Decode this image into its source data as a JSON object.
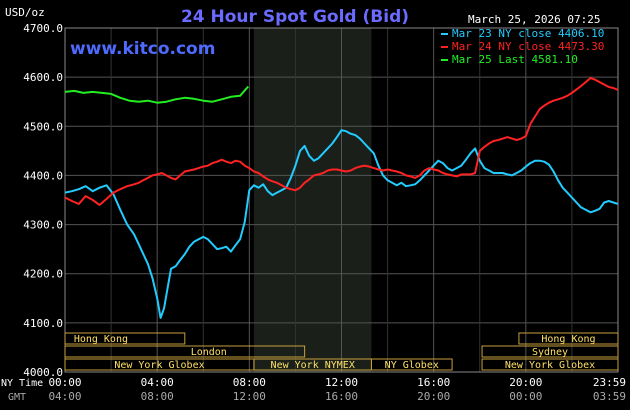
{
  "chart_data": {
    "type": "line",
    "title": "24 Hour Spot Gold (Bid)",
    "date_label": "March 25, 2026 07:25",
    "ylabel": "USD/oz",
    "watermark": "www.kitco.com",
    "ylim": [
      4000,
      4700
    ],
    "xlim": [
      0,
      24
    ],
    "grid": true,
    "yticks": [
      {
        "value": 4700,
        "label": "4700.0"
      },
      {
        "value": 4600,
        "label": "4600.0"
      },
      {
        "value": 4500,
        "label": "4500.0"
      },
      {
        "value": 4400,
        "label": "4400.0"
      },
      {
        "value": 4300,
        "label": "4300.0"
      },
      {
        "value": 4200,
        "label": "4200.0"
      },
      {
        "value": 4100,
        "label": "4100.0"
      },
      {
        "value": 4000,
        "label": "4000.0"
      }
    ],
    "xticks": [
      {
        "value": 0,
        "ny": "00:00",
        "gmt": "04:00"
      },
      {
        "value": 4,
        "ny": "04:00",
        "gmt": "08:00"
      },
      {
        "value": 8,
        "ny": "08:00",
        "gmt": "12:00"
      },
      {
        "value": 12,
        "ny": "12:00",
        "gmt": "16:00"
      },
      {
        "value": 16,
        "ny": "16:00",
        "gmt": "20:00"
      },
      {
        "value": 20,
        "ny": "20:00",
        "gmt": "00:00"
      },
      {
        "value": 24,
        "ny": "23:59",
        "gmt": "03:59"
      }
    ],
    "x_row_labels": {
      "ny": "NY Time",
      "gmt": "GMT"
    },
    "highlight_range": [
      8.2,
      13.3
    ],
    "legend_placement": "top-right",
    "series": [
      {
        "name": "Mar 23 NY close 4406.10",
        "color": "#22ccff",
        "points": [
          [
            0,
            4365
          ],
          [
            0.3,
            4368
          ],
          [
            0.6,
            4372
          ],
          [
            0.9,
            4378
          ],
          [
            1.2,
            4368
          ],
          [
            1.5,
            4375
          ],
          [
            1.8,
            4380
          ],
          [
            2.1,
            4362
          ],
          [
            2.4,
            4330
          ],
          [
            2.7,
            4300
          ],
          [
            3.0,
            4280
          ],
          [
            3.2,
            4260
          ],
          [
            3.4,
            4240
          ],
          [
            3.6,
            4220
          ],
          [
            3.8,
            4190
          ],
          [
            4.0,
            4150
          ],
          [
            4.15,
            4110
          ],
          [
            4.3,
            4130
          ],
          [
            4.45,
            4170
          ],
          [
            4.6,
            4210
          ],
          [
            4.8,
            4215
          ],
          [
            5.0,
            4228
          ],
          [
            5.2,
            4240
          ],
          [
            5.4,
            4255
          ],
          [
            5.6,
            4265
          ],
          [
            5.8,
            4270
          ],
          [
            6.0,
            4275
          ],
          [
            6.2,
            4270
          ],
          [
            6.4,
            4260
          ],
          [
            6.6,
            4250
          ],
          [
            6.8,
            4252
          ],
          [
            7.0,
            4255
          ],
          [
            7.2,
            4245
          ],
          [
            7.4,
            4258
          ],
          [
            7.6,
            4270
          ],
          [
            7.8,
            4305
          ],
          [
            8.0,
            4370
          ],
          [
            8.2,
            4380
          ],
          [
            8.4,
            4375
          ],
          [
            8.6,
            4382
          ],
          [
            8.8,
            4368
          ],
          [
            9.0,
            4360
          ],
          [
            9.2,
            4365
          ],
          [
            9.4,
            4370
          ],
          [
            9.6,
            4375
          ],
          [
            9.8,
            4395
          ],
          [
            10.0,
            4420
          ],
          [
            10.2,
            4450
          ],
          [
            10.4,
            4460
          ],
          [
            10.6,
            4440
          ],
          [
            10.8,
            4430
          ],
          [
            11.0,
            4435
          ],
          [
            11.2,
            4445
          ],
          [
            11.4,
            4455
          ],
          [
            11.6,
            4465
          ],
          [
            11.8,
            4478
          ],
          [
            12.0,
            4492
          ],
          [
            12.2,
            4490
          ],
          [
            12.4,
            4485
          ],
          [
            12.6,
            4482
          ],
          [
            12.8,
            4475
          ],
          [
            13.0,
            4465
          ],
          [
            13.2,
            4455
          ],
          [
            13.4,
            4445
          ],
          [
            13.6,
            4420
          ],
          [
            13.8,
            4400
          ],
          [
            14.0,
            4390
          ],
          [
            14.2,
            4385
          ],
          [
            14.4,
            4380
          ],
          [
            14.6,
            4385
          ],
          [
            14.8,
            4378
          ],
          [
            15.0,
            4380
          ],
          [
            15.2,
            4382
          ],
          [
            15.4,
            4390
          ],
          [
            15.6,
            4400
          ],
          [
            15.8,
            4410
          ],
          [
            16.0,
            4420
          ],
          [
            16.2,
            4430
          ],
          [
            16.4,
            4425
          ],
          [
            16.6,
            4415
          ],
          [
            16.8,
            4410
          ],
          [
            17.0,
            4415
          ],
          [
            17.2,
            4420
          ],
          [
            17.4,
            4432
          ],
          [
            17.6,
            4445
          ],
          [
            17.8,
            4455
          ],
          [
            18.0,
            4430
          ],
          [
            18.2,
            4415
          ],
          [
            18.4,
            4410
          ],
          [
            18.6,
            4405
          ],
          [
            18.8,
            4405
          ],
          [
            19.0,
            4405
          ],
          [
            19.2,
            4402
          ],
          [
            19.4,
            4400
          ],
          [
            19.6,
            4405
          ],
          [
            19.8,
            4410
          ],
          [
            20.0,
            4418
          ],
          [
            20.2,
            4425
          ],
          [
            20.4,
            4430
          ],
          [
            20.6,
            4430
          ],
          [
            20.8,
            4428
          ],
          [
            21.0,
            4422
          ],
          [
            21.2,
            4408
          ],
          [
            21.4,
            4390
          ],
          [
            21.6,
            4375
          ],
          [
            21.8,
            4365
          ],
          [
            22.0,
            4355
          ],
          [
            22.2,
            4345
          ],
          [
            22.4,
            4335
          ],
          [
            22.6,
            4330
          ],
          [
            22.8,
            4325
          ],
          [
            23.0,
            4328
          ],
          [
            23.2,
            4332
          ],
          [
            23.4,
            4345
          ],
          [
            23.6,
            4348
          ],
          [
            23.8,
            4345
          ],
          [
            24.0,
            4342
          ]
        ]
      },
      {
        "name": "Mar 24 NY close 4473.30",
        "color": "#ff2222",
        "points": [
          [
            0,
            4355
          ],
          [
            0.3,
            4348
          ],
          [
            0.6,
            4342
          ],
          [
            0.9,
            4358
          ],
          [
            1.2,
            4350
          ],
          [
            1.5,
            4340
          ],
          [
            1.8,
            4352
          ],
          [
            2.1,
            4365
          ],
          [
            2.4,
            4372
          ],
          [
            2.7,
            4378
          ],
          [
            3.0,
            4382
          ],
          [
            3.2,
            4385
          ],
          [
            3.4,
            4390
          ],
          [
            3.6,
            4395
          ],
          [
            3.8,
            4400
          ],
          [
            4.0,
            4402
          ],
          [
            4.2,
            4405
          ],
          [
            4.4,
            4400
          ],
          [
            4.6,
            4395
          ],
          [
            4.8,
            4392
          ],
          [
            5.0,
            4400
          ],
          [
            5.2,
            4408
          ],
          [
            5.4,
            4410
          ],
          [
            5.6,
            4412
          ],
          [
            5.8,
            4415
          ],
          [
            6.0,
            4418
          ],
          [
            6.2,
            4420
          ],
          [
            6.4,
            4425
          ],
          [
            6.6,
            4428
          ],
          [
            6.8,
            4432
          ],
          [
            7.0,
            4428
          ],
          [
            7.2,
            4425
          ],
          [
            7.4,
            4430
          ],
          [
            7.6,
            4428
          ],
          [
            7.8,
            4420
          ],
          [
            8.0,
            4415
          ],
          [
            8.2,
            4408
          ],
          [
            8.4,
            4405
          ],
          [
            8.6,
            4398
          ],
          [
            8.8,
            4392
          ],
          [
            9.0,
            4388
          ],
          [
            9.2,
            4385
          ],
          [
            9.4,
            4380
          ],
          [
            9.6,
            4375
          ],
          [
            9.8,
            4372
          ],
          [
            10.0,
            4370
          ],
          [
            10.2,
            4375
          ],
          [
            10.4,
            4385
          ],
          [
            10.6,
            4392
          ],
          [
            10.8,
            4400
          ],
          [
            11.0,
            4402
          ],
          [
            11.2,
            4405
          ],
          [
            11.4,
            4410
          ],
          [
            11.6,
            4412
          ],
          [
            11.8,
            4412
          ],
          [
            12.0,
            4410
          ],
          [
            12.2,
            4408
          ],
          [
            12.4,
            4410
          ],
          [
            12.6,
            4415
          ],
          [
            12.8,
            4418
          ],
          [
            13.0,
            4420
          ],
          [
            13.2,
            4418
          ],
          [
            13.4,
            4415
          ],
          [
            13.6,
            4412
          ],
          [
            13.8,
            4410
          ],
          [
            14.0,
            4412
          ],
          [
            14.2,
            4410
          ],
          [
            14.4,
            4408
          ],
          [
            14.6,
            4405
          ],
          [
            14.8,
            4400
          ],
          [
            15.0,
            4398
          ],
          [
            15.2,
            4395
          ],
          [
            15.4,
            4400
          ],
          [
            15.6,
            4410
          ],
          [
            15.8,
            4415
          ],
          [
            16.0,
            4412
          ],
          [
            16.2,
            4410
          ],
          [
            16.4,
            4405
          ],
          [
            16.6,
            4402
          ],
          [
            16.8,
            4400
          ],
          [
            17.0,
            4398
          ],
          [
            17.2,
            4402
          ],
          [
            17.4,
            4402
          ],
          [
            17.6,
            4402
          ],
          [
            17.8,
            4405
          ],
          [
            18.0,
            4450
          ],
          [
            18.2,
            4458
          ],
          [
            18.4,
            4465
          ],
          [
            18.6,
            4470
          ],
          [
            18.8,
            4472
          ],
          [
            19.0,
            4475
          ],
          [
            19.2,
            4478
          ],
          [
            19.4,
            4475
          ],
          [
            19.6,
            4472
          ],
          [
            19.8,
            4475
          ],
          [
            20.0,
            4480
          ],
          [
            20.2,
            4505
          ],
          [
            20.4,
            4520
          ],
          [
            20.6,
            4535
          ],
          [
            20.8,
            4542
          ],
          [
            21.0,
            4548
          ],
          [
            21.2,
            4552
          ],
          [
            21.4,
            4555
          ],
          [
            21.6,
            4558
          ],
          [
            21.8,
            4562
          ],
          [
            22.0,
            4568
          ],
          [
            22.2,
            4575
          ],
          [
            22.4,
            4582
          ],
          [
            22.6,
            4590
          ],
          [
            22.8,
            4598
          ],
          [
            23.0,
            4595
          ],
          [
            23.2,
            4590
          ],
          [
            23.4,
            4585
          ],
          [
            23.6,
            4580
          ],
          [
            23.8,
            4578
          ],
          [
            24.0,
            4574
          ]
        ]
      },
      {
        "name": "Mar 25 Last 4581.10",
        "color": "#22ee22",
        "points": [
          [
            0,
            4570
          ],
          [
            0.4,
            4572
          ],
          [
            0.8,
            4568
          ],
          [
            1.2,
            4570
          ],
          [
            1.6,
            4568
          ],
          [
            2.0,
            4566
          ],
          [
            2.4,
            4558
          ],
          [
            2.8,
            4552
          ],
          [
            3.2,
            4550
          ],
          [
            3.6,
            4552
          ],
          [
            4.0,
            4548
          ],
          [
            4.4,
            4550
          ],
          [
            4.8,
            4555
          ],
          [
            5.2,
            4558
          ],
          [
            5.6,
            4556
          ],
          [
            6.0,
            4552
          ],
          [
            6.4,
            4550
          ],
          [
            6.8,
            4555
          ],
          [
            7.2,
            4560
          ],
          [
            7.6,
            4562
          ],
          [
            7.95,
            4581
          ]
        ]
      }
    ],
    "sessions_left": [
      {
        "label": "Hong Kong",
        "start": 0,
        "end": 5.2,
        "row": 0
      },
      {
        "label": "London",
        "start": 0,
        "end": 10.4,
        "row": 1
      },
      {
        "label": "New York Globex",
        "start": 0,
        "end": 8.2,
        "row": 2
      },
      {
        "label": "New York NYMEX",
        "start": 8.2,
        "end": 13.3,
        "row": 2
      },
      {
        "label": "NY Globex",
        "start": 13.3,
        "end": 16.8,
        "row": 2
      }
    ],
    "sessions_right": [
      {
        "label": "Hong Kong",
        "start": 19.7,
        "end": 24,
        "row": 0
      },
      {
        "label": "Sydney",
        "start": 18.1,
        "end": 24,
        "row": 1
      },
      {
        "label": "New York Globex",
        "start": 18.1,
        "end": 24,
        "row": 2
      }
    ]
  }
}
